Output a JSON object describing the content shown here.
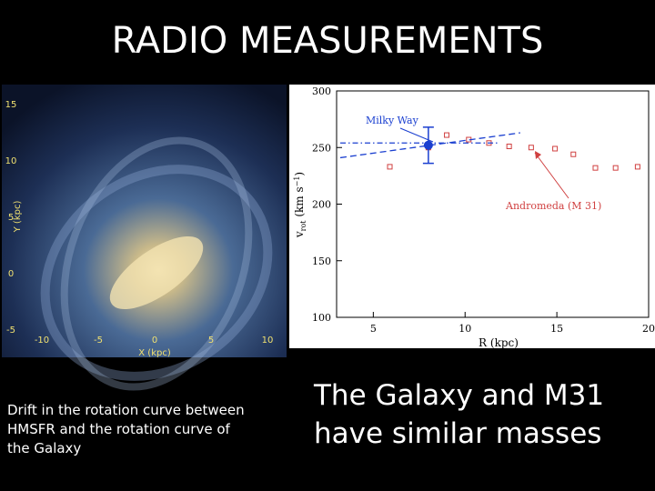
{
  "slide": {
    "title": "RADIO MEASUREMENTS",
    "left_caption": [
      "Drift in the rotation curve between",
      " HMSFR and the rotation curve of",
      "the Galaxy"
    ],
    "right_caption": [
      "The Galaxy and M31",
      "have similar masses"
    ]
  },
  "galaxy_image": {
    "x_label": "X (kpc)",
    "y_label": "Y (kpc)",
    "xticks": [
      -10,
      -5,
      0,
      5,
      10
    ],
    "yticks": [
      15,
      10,
      5,
      0,
      -5
    ]
  },
  "chart_data": {
    "type": "scatter",
    "x_label": "R (kpc)",
    "y_label": [
      "v",
      "rot",
      " (km s",
      "−1",
      ")"
    ],
    "xlim": [
      3,
      20
    ],
    "ylim": [
      100,
      300
    ],
    "xticks": [
      5,
      10,
      15,
      20
    ],
    "yticks": [
      100,
      150,
      200,
      250,
      300
    ],
    "annotations": [
      "Milky Way",
      "Andromeda (M 31)"
    ],
    "series": [
      {
        "color": "#d04040",
        "marker": "square-open",
        "x": [
          5.9,
          8.0,
          9.0,
          10.2,
          11.3,
          12.4,
          13.6,
          14.9,
          15.9,
          17.1,
          18.2,
          19.4
        ],
        "values": [
          233,
          250,
          261,
          257,
          254,
          251,
          250,
          249,
          244,
          232,
          232,
          233
        ]
      },
      {
        "color": "#1a3fd0",
        "marker": "circle",
        "x": [
          8.0
        ],
        "values": [
          252
        ],
        "errors": [
          16
        ]
      },
      {
        "color": "#1a3fd0",
        "line": "dashed",
        "x": [
          3.2,
          13.0
        ],
        "values": [
          241,
          263
        ]
      },
      {
        "color": "#1a3fd0",
        "line": "dashdot",
        "x": [
          3.2,
          11.8
        ],
        "values": [
          254,
          254
        ]
      }
    ]
  }
}
